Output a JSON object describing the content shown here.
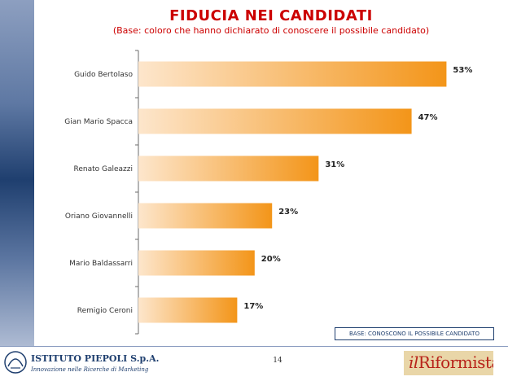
{
  "title": "FIDUCIA NEI CANDIDATI",
  "subtitle": "(Base: coloro che hanno dichiarato di conoscere il possibile candidato)",
  "base_note": "BASE: CONOSCONO IL POSSIBILE CANDIDATO",
  "page_number": "14",
  "logo_left": {
    "name": "ISTITUTO PIEPOLI S.p.A.",
    "tagline": "Innovazione nelle Ricerche di Marketing"
  },
  "logo_right": {
    "prefix": "il",
    "name": "Riformista"
  },
  "colors": {
    "title": "#cc0000",
    "bar_start": "#fde6cc",
    "bar_end": "#f39519",
    "band": "#1f3f6f"
  },
  "chart_data": {
    "type": "bar",
    "orientation": "horizontal",
    "categories": [
      "Guido Bertolaso",
      "Gian Mario Spacca",
      "Renato Galeazzi",
      "Oriano Giovannelli",
      "Mario Baldassarri",
      "Remigio Ceroni"
    ],
    "values": [
      53,
      47,
      31,
      23,
      20,
      17
    ],
    "value_labels": [
      "53%",
      "47%",
      "31%",
      "23%",
      "20%",
      "17%"
    ],
    "xlim": [
      0,
      100
    ],
    "grid": false,
    "legend": "none"
  }
}
